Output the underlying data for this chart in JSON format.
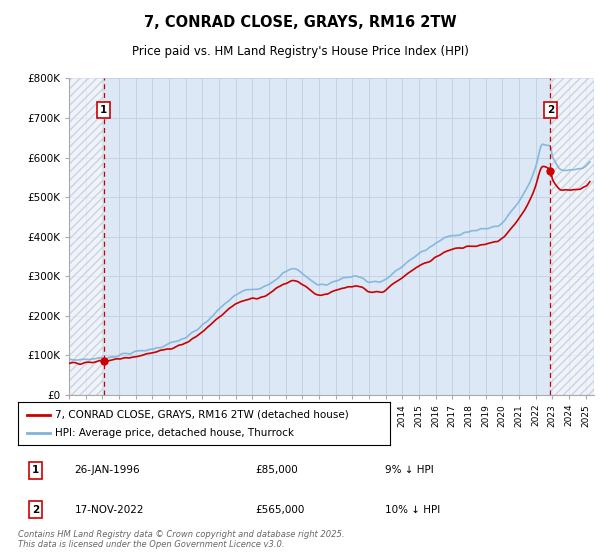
{
  "title": "7, CONRAD CLOSE, GRAYS, RM16 2TW",
  "subtitle": "Price paid vs. HM Land Registry's House Price Index (HPI)",
  "footer": "Contains HM Land Registry data © Crown copyright and database right 2025.\nThis data is licensed under the Open Government Licence v3.0.",
  "legend_line1": "7, CONRAD CLOSE, GRAYS, RM16 2TW (detached house)",
  "legend_line2": "HPI: Average price, detached house, Thurrock",
  "sale1_date": "26-JAN-1996",
  "sale1_price": "£85,000",
  "sale1_hpi": "9% ↓ HPI",
  "sale2_date": "17-NOV-2022",
  "sale2_price": "£565,000",
  "sale2_hpi": "10% ↓ HPI",
  "hpi_color": "#7fb3d9",
  "sale_color": "#cc0000",
  "bg_color": "#ffffff",
  "plot_bg": "#dce8f5",
  "grid_color": "#c0d0e0",
  "ylim": [
    0,
    800000
  ],
  "yticks": [
    0,
    100000,
    200000,
    300000,
    400000,
    500000,
    600000,
    700000,
    800000
  ],
  "ytick_labels": [
    "£0",
    "£100K",
    "£200K",
    "£300K",
    "£400K",
    "£500K",
    "£600K",
    "£700K",
    "£800K"
  ],
  "sale1_x": 1996.07,
  "sale1_y": 85000,
  "sale2_x": 2022.88,
  "sale2_y": 565000,
  "xmin": 1994.0,
  "xmax": 2025.5
}
